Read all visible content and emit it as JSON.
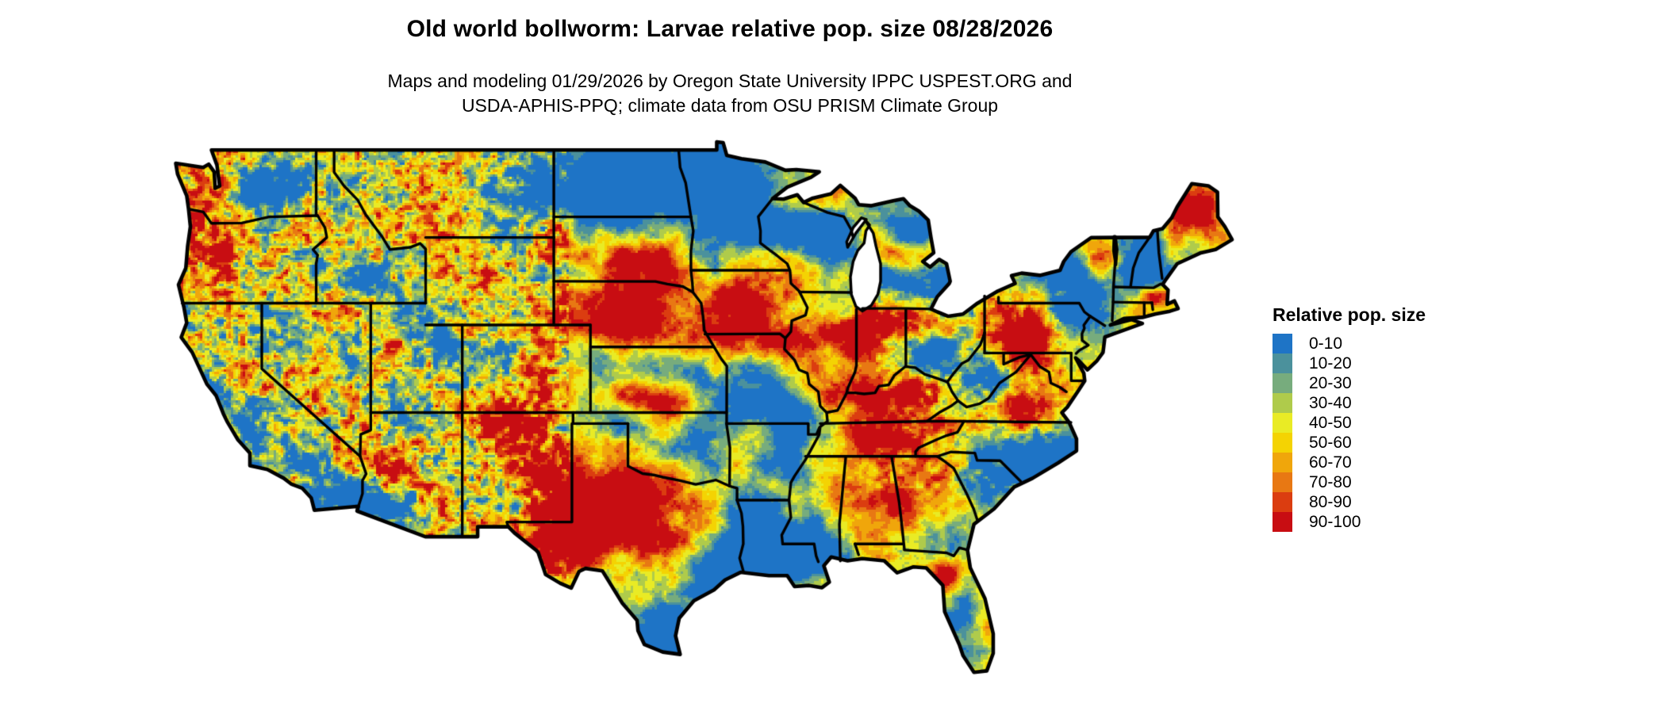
{
  "header": {
    "title": "Old world bollworm: Larvae relative pop. size 08/28/2026",
    "subtitle_line1": "Maps and modeling 01/29/2026 by Oregon State University IPPC USPEST.ORG and",
    "subtitle_line2": "USDA-APHIS-PPQ; climate data from OSU PRISM Climate Group"
  },
  "legend": {
    "title": "Relative pop. size",
    "items": [
      {
        "label": "0-10",
        "color": "#1E74C6"
      },
      {
        "label": "10-20",
        "color": "#4B919C"
      },
      {
        "label": "20-30",
        "color": "#77AC7D"
      },
      {
        "label": "30-40",
        "color": "#AFCB4B"
      },
      {
        "label": "40-50",
        "color": "#E9EB25"
      },
      {
        "label": "50-60",
        "color": "#F4D303"
      },
      {
        "label": "60-70",
        "color": "#F0A60B"
      },
      {
        "label": "70-80",
        "color": "#E87813"
      },
      {
        "label": "80-90",
        "color": "#DB3D10"
      },
      {
        "label": "90-100",
        "color": "#C80D12"
      }
    ]
  },
  "map": {
    "region_depicted": "Contiguous United States with state boundaries",
    "kind": "raster choropleth of relative population size (0-100)",
    "border_color": "#000000",
    "background_color": "#FFFFFF"
  }
}
